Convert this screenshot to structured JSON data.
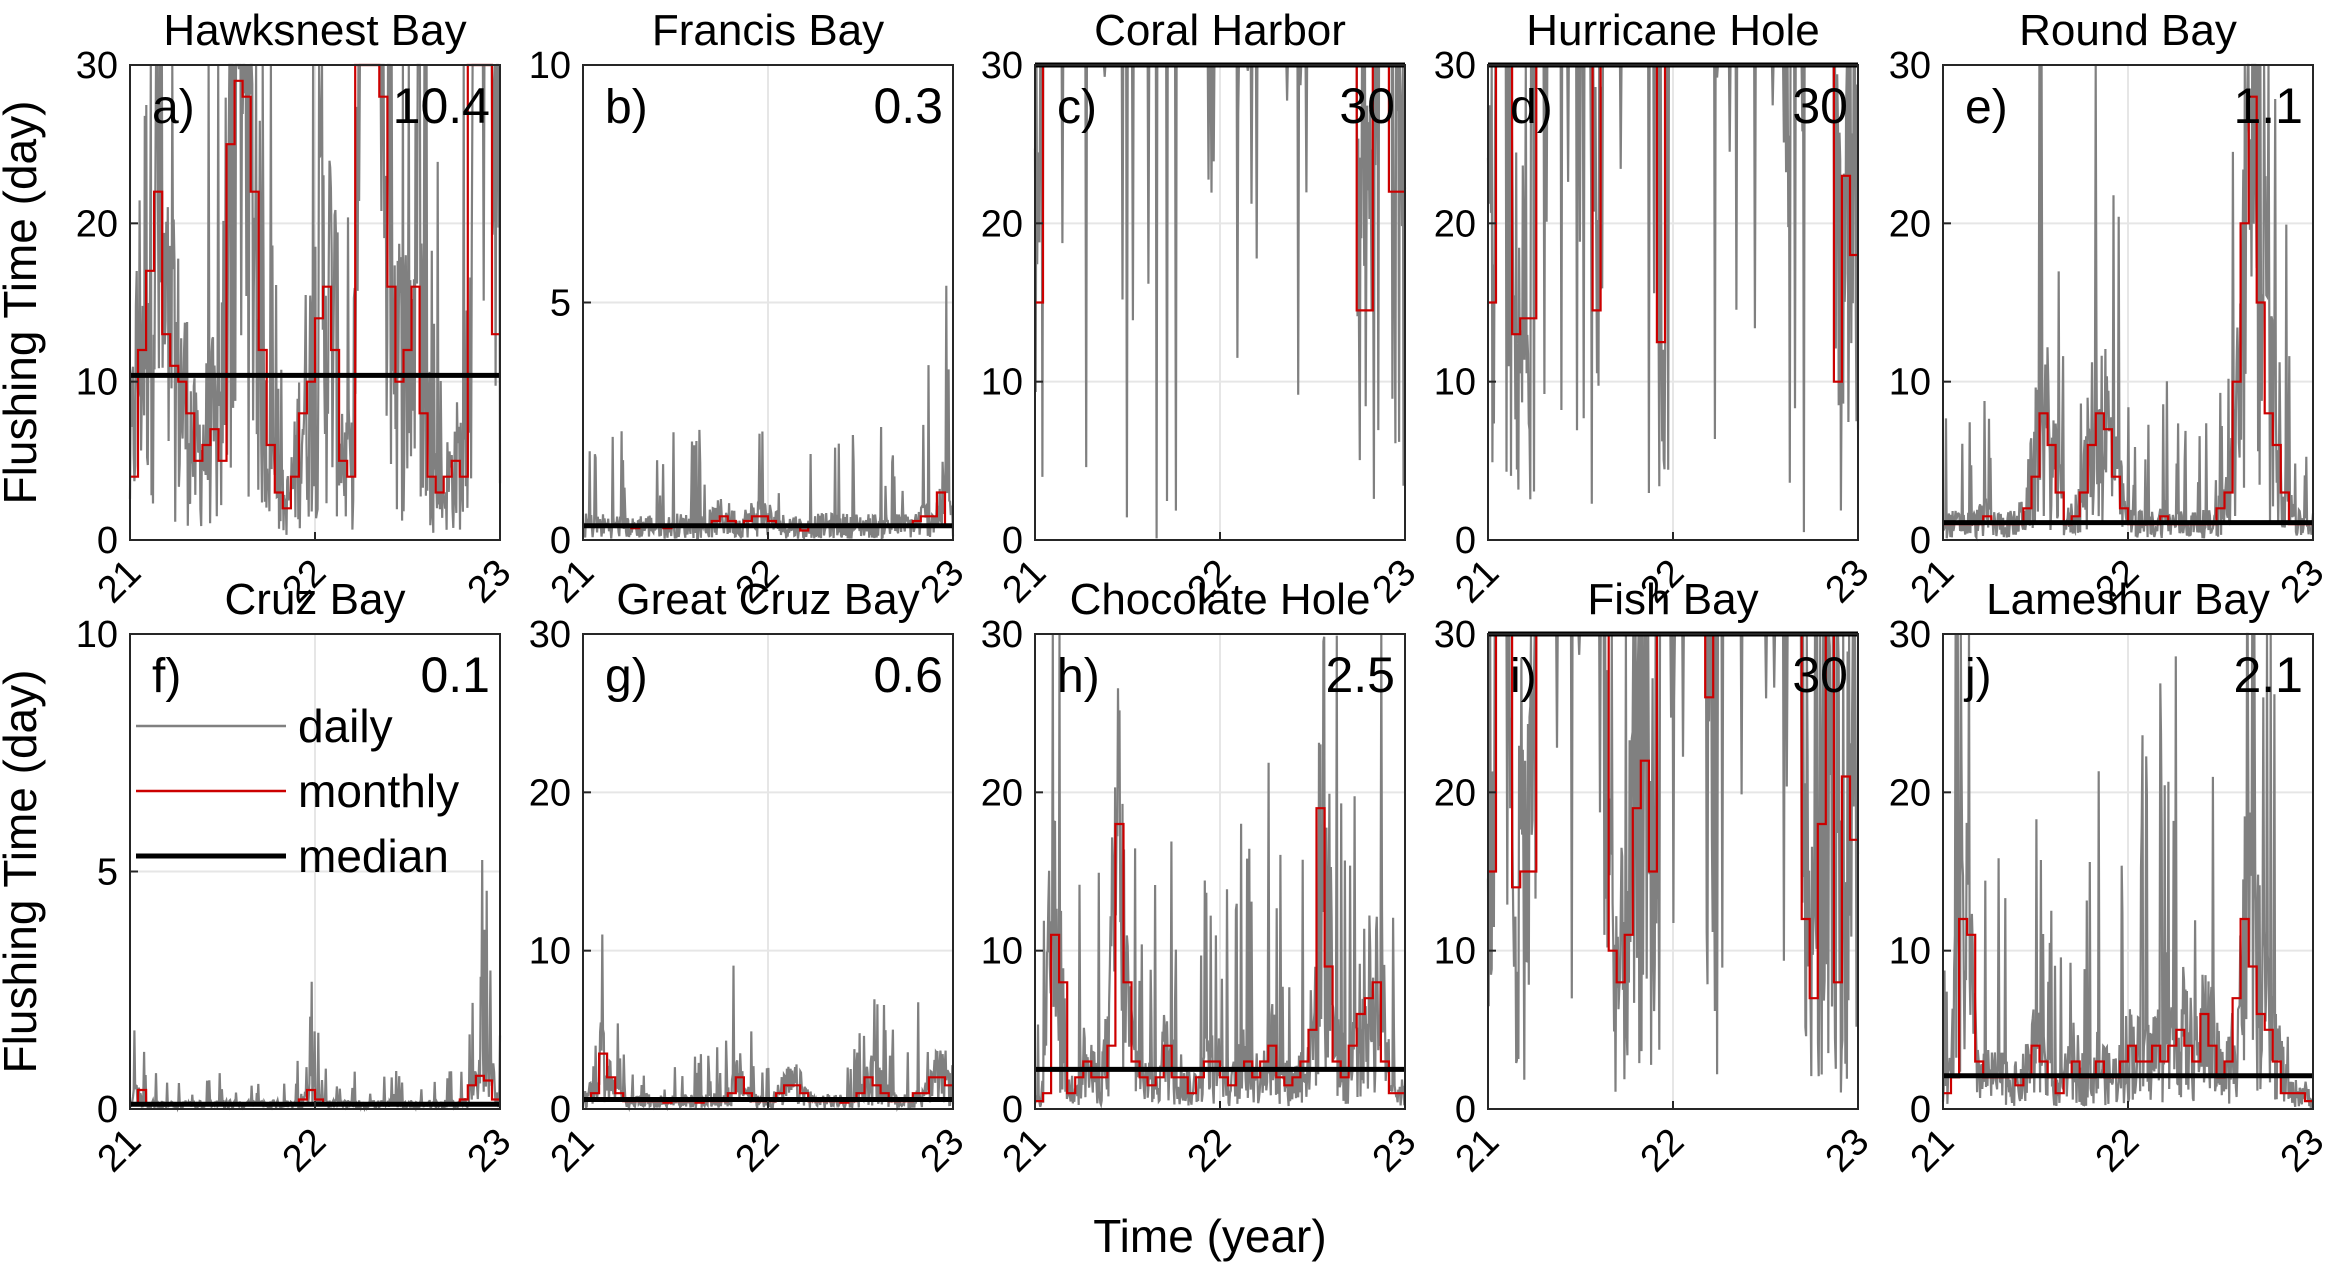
{
  "chart_data": {
    "type": "line",
    "xlabel": "Time (year)",
    "ylabel": "Flushing Time (day)",
    "xlim": [
      21,
      23
    ],
    "xticks": [
      "21",
      "22",
      "23"
    ],
    "legend": {
      "placement": "panel f, upper-left",
      "entries": [
        {
          "label": "daily",
          "color": "#808080"
        },
        {
          "label": "monthly",
          "color": "#cc0000"
        },
        {
          "label": "median",
          "color": "#000000"
        }
      ]
    },
    "colors": {
      "daily": "#808080",
      "monthly": "#cc0000",
      "median": "#000000",
      "grid": "#e6e6e6"
    },
    "panels": [
      {
        "label": "a)",
        "title": "Hawksnest Bay",
        "median": 10.4,
        "median_label": "10.4",
        "ylim": [
          0,
          30
        ],
        "yticks": [
          "0",
          "10",
          "20",
          "30"
        ],
        "monthly": [
          4,
          12,
          17,
          22,
          13,
          11,
          10,
          8,
          5,
          6,
          7,
          5,
          25,
          29,
          28,
          22,
          12,
          6,
          3,
          2,
          4,
          8,
          10,
          14,
          16,
          12,
          5,
          4,
          30,
          30,
          30,
          28,
          16,
          10,
          12,
          16,
          8,
          4,
          3,
          4,
          5,
          4,
          30,
          30,
          30,
          13
        ]
      },
      {
        "label": "b)",
        "title": "Francis Bay",
        "median": 0.3,
        "median_label": "0.3",
        "ylim": [
          0,
          10
        ],
        "yticks": [
          "0",
          "5",
          "10"
        ],
        "monthly": [
          0.3,
          0.3,
          0.3,
          0.3,
          0.3,
          0.3,
          0.25,
          0.3,
          0.3,
          0.3,
          0.25,
          0.3,
          0.3,
          0.3,
          0.3,
          0.3,
          0.4,
          0.5,
          0.4,
          0.3,
          0.4,
          0.5,
          0.5,
          0.4,
          0.3,
          0.3,
          0.3,
          0.2,
          0.3,
          0.3,
          0.3,
          0.3,
          0.3,
          0.3,
          0.3,
          0.3,
          0.3,
          0.3,
          0.3,
          0.3,
          0.3,
          0.4,
          0.5,
          0.5,
          1.0,
          0.3
        ]
      },
      {
        "label": "c)",
        "title": "Coral Harbor",
        "median": 30,
        "median_label": "30",
        "ylim": [
          0,
          30
        ],
        "yticks": [
          "0",
          "10",
          "20",
          "30"
        ],
        "monthly": [
          15,
          30,
          30,
          30,
          30,
          30,
          30,
          30,
          30,
          30,
          30,
          30,
          30,
          30,
          30,
          30,
          30,
          30,
          30,
          30,
          30,
          30,
          30,
          30,
          30,
          30,
          30,
          30,
          30,
          30,
          30,
          30,
          30,
          30,
          30,
          30,
          30,
          30,
          30,
          30,
          14.5,
          14.5,
          30,
          30,
          22,
          22
        ]
      },
      {
        "label": "d)",
        "title": "Hurricane Hole",
        "median": 30,
        "median_label": "30",
        "ylim": [
          0,
          30
        ],
        "yticks": [
          "0",
          "10",
          "20",
          "30"
        ],
        "monthly": [
          15,
          30,
          30,
          13,
          14,
          14,
          30,
          30,
          30,
          30,
          30,
          30,
          30,
          14.5,
          30,
          30,
          30,
          30,
          30,
          30,
          30,
          12.5,
          30,
          30,
          30,
          30,
          30,
          30,
          30,
          30,
          30,
          30,
          30,
          30,
          30,
          30,
          30,
          30,
          30,
          30,
          30,
          30,
          30,
          10,
          23,
          18
        ]
      },
      {
        "label": "e)",
        "title": "Round Bay",
        "median": 1.1,
        "median_label": "1.1",
        "ylim": [
          0,
          30
        ],
        "yticks": [
          "0",
          "10",
          "20",
          "30"
        ],
        "monthly": [
          1,
          1,
          1,
          1,
          1,
          1.5,
          1,
          1,
          1,
          1,
          2,
          4,
          8,
          6,
          3,
          1,
          1.5,
          3,
          6,
          8,
          7,
          4,
          2,
          1,
          1,
          1,
          1,
          1.5,
          1,
          1,
          1,
          1,
          1,
          1,
          2,
          3,
          10,
          20,
          28,
          15,
          8,
          6,
          3,
          1,
          1,
          1
        ]
      },
      {
        "label": "f)",
        "title": "Cruz Bay",
        "median": 0.1,
        "median_label": "0.1",
        "ylim": [
          0,
          10
        ],
        "yticks": [
          "0",
          "5",
          "10"
        ],
        "monthly": [
          0.1,
          0.4,
          0.1,
          0.1,
          0.1,
          0.1,
          0.1,
          0.1,
          0.1,
          0.1,
          0.1,
          0.1,
          0.1,
          0.1,
          0.1,
          0.1,
          0.1,
          0.1,
          0.1,
          0.1,
          0.1,
          0.2,
          0.4,
          0.2,
          0.1,
          0.1,
          0.1,
          0.1,
          0.1,
          0.1,
          0.1,
          0.1,
          0.1,
          0.1,
          0.1,
          0.1,
          0.1,
          0.1,
          0.1,
          0.1,
          0.1,
          0.2,
          0.5,
          0.7,
          0.6,
          0.2
        ]
      },
      {
        "label": "g)",
        "title": "Great Cruz Bay",
        "median": 0.6,
        "median_label": "0.6",
        "ylim": [
          0,
          30
        ],
        "yticks": [
          "0",
          "10",
          "20",
          "30"
        ],
        "monthly": [
          0.6,
          1,
          3.5,
          2,
          1,
          0.5,
          0.5,
          0.5,
          0.5,
          0.5,
          0.4,
          0.5,
          0.5,
          0.5,
          0.4,
          0.5,
          0.5,
          0.5,
          1,
          2,
          1,
          0.5,
          0.5,
          0.5,
          1,
          1.5,
          1.5,
          1,
          0.5,
          0.5,
          0.5,
          0.5,
          0.4,
          0.5,
          1,
          2,
          1.5,
          1,
          0.5,
          0.5,
          0.5,
          1,
          1,
          2,
          2,
          1.5
        ]
      },
      {
        "label": "h)",
        "title": "Chocolate Hole",
        "median": 2.5,
        "median_label": "2.5",
        "ylim": [
          0,
          30
        ],
        "yticks": [
          "0",
          "10",
          "20",
          "30"
        ],
        "monthly": [
          0.5,
          1,
          11,
          8,
          1,
          2,
          3,
          2,
          2,
          4,
          18,
          8,
          3,
          2,
          1.5,
          2,
          4,
          2,
          2,
          1,
          2,
          3,
          3,
          2,
          1.5,
          2.5,
          3,
          2,
          3,
          4,
          2,
          1.5,
          2,
          3,
          5,
          19,
          9,
          3,
          2,
          4,
          6,
          7,
          8,
          3,
          1,
          1
        ]
      },
      {
        "label": "i)",
        "title": "Fish Bay",
        "median": 30,
        "median_label": "30",
        "ylim": [
          0,
          30
        ],
        "yticks": [
          "0",
          "10",
          "20",
          "30"
        ],
        "monthly": [
          15,
          30,
          30,
          14,
          15,
          15,
          30,
          30,
          30,
          30,
          30,
          30,
          30,
          30,
          30,
          10,
          8,
          11,
          19,
          22,
          15,
          30,
          30,
          30,
          30,
          30,
          30,
          26,
          30,
          30,
          30,
          30,
          30,
          30,
          30,
          30,
          30,
          30,
          30,
          12,
          7,
          18,
          30,
          8,
          21,
          17
        ]
      },
      {
        "label": "j)",
        "title": "Lameshur Bay",
        "median": 2.1,
        "median_label": "2.1",
        "ylim": [
          0,
          30
        ],
        "yticks": [
          "0",
          "10",
          "20",
          "30"
        ],
        "monthly": [
          1,
          2,
          12,
          11,
          3,
          2,
          2,
          2,
          2,
          1.5,
          2,
          4,
          3,
          2,
          1,
          2,
          3,
          2,
          2,
          3,
          2,
          2,
          3,
          4,
          3,
          3,
          4,
          3,
          4,
          5,
          4,
          3,
          6,
          4,
          2,
          3,
          7,
          12,
          9,
          6,
          5,
          3,
          1,
          1,
          1,
          0.5
        ]
      }
    ]
  }
}
